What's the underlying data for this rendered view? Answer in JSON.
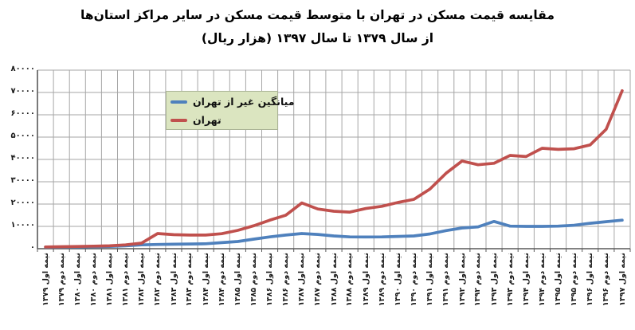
{
  "chart_data": {
    "type": "line",
    "title": "مقایسه قیمت مسکن در تهران با متوسط قیمت مسکن در سایر مراکز استان‌ها",
    "subtitle": "از سال ۱۳۷۹ تا سال ۱۳۹۷ (هزار ریال)",
    "unit": "هزار ریال",
    "categories": [
      "نیمه اول ۱۳۷۹",
      "نیمه دوم ۱۳۷۹",
      "نیمه اول ۱۳۸۰",
      "نیمه دوم ۱۳۸۰",
      "نیمه اول ۱۳۸۱",
      "نیمه دوم ۱۳۸۱",
      "نیمه اول ۱۳۸۲",
      "نیمه دوم ۱۳۸۲",
      "نیمه اول ۱۳۸۳",
      "نیمه دوم ۱۳۸۳",
      "نیمه اول ۱۳۸۴",
      "نیمه دوم ۱۳۸۴",
      "نیمه اول ۱۳۸۵",
      "نیمه دوم ۱۳۸۵",
      "نیمه اول ۱۳۸۶",
      "نیمه دوم ۱۳۸۶",
      "نیمه اول ۱۳۸۷",
      "نیمه دوم ۱۳۸۷",
      "نیمه اول ۱۳۸۸",
      "نیمه دوم ۱۳۸۸",
      "نیمه اول ۱۳۸۹",
      "نیمه دوم ۱۳۸۹",
      "نیمه اول ۱۳۹۰",
      "نیمه دوم ۱۳۹۰",
      "نیمه اول ۱۳۹۱",
      "نیمه دوم ۱۳۹۱",
      "نیمه اول ۱۳۹۲",
      "نیمه دوم ۱۳۹۲",
      "نیمه اول ۱۳۹۳",
      "نیمه دوم ۱۳۹۳",
      "نیمه اول ۱۳۹۴",
      "نیمه دوم ۱۳۹۴",
      "نیمه اول ۱۳۹۵",
      "نیمه دوم ۱۳۹۵",
      "نیمه اول ۱۳۹۶",
      "نیمه دوم ۱۳۹۶",
      "نیمه اول ۱۳۹۷"
    ],
    "series": [
      {
        "name": "میانگین غیر از تهران",
        "color": "#4F81BD",
        "values": [
          700,
          750,
          800,
          900,
          1000,
          1300,
          1700,
          1900,
          2000,
          2100,
          2200,
          2700,
          3200,
          4300,
          5300,
          6100,
          6800,
          6400,
          5700,
          5300,
          5250,
          5300,
          5500,
          5700,
          6600,
          8100,
          9300,
          9800,
          12200,
          10100,
          10000,
          10000,
          10100,
          10500,
          11400,
          12100,
          12800
        ]
      },
      {
        "name": "تهران",
        "color": "#C0504D",
        "values": [
          800,
          900,
          1000,
          1150,
          1300,
          1700,
          2500,
          6800,
          6300,
          6100,
          6100,
          6700,
          8200,
          10300,
          12800,
          15000,
          20500,
          17800,
          16800,
          16400,
          18000,
          19000,
          20700,
          22100,
          26700,
          33800,
          39300,
          37600,
          38300,
          41800,
          41300,
          45000,
          44500,
          44800,
          46500,
          53500,
          70800
        ]
      }
    ],
    "ylim": [
      0,
      80000
    ],
    "y_tick_step": 10000,
    "y_tick_labels": [
      "۰",
      "۱۰۰۰۰",
      "۲۰۰۰۰",
      "۳۰۰۰۰",
      "۴۰۰۰۰",
      "۵۰۰۰۰",
      "۶۰۰۰۰",
      "۷۰۰۰۰",
      "۸۰۰۰۰"
    ],
    "grid": "both",
    "legend_position": "inside-top-left",
    "legend_bg": "#DBE5C0",
    "gridline_color": "#A6A6A6",
    "axis_color": "#595959",
    "xlabel": "",
    "ylabel": ""
  }
}
